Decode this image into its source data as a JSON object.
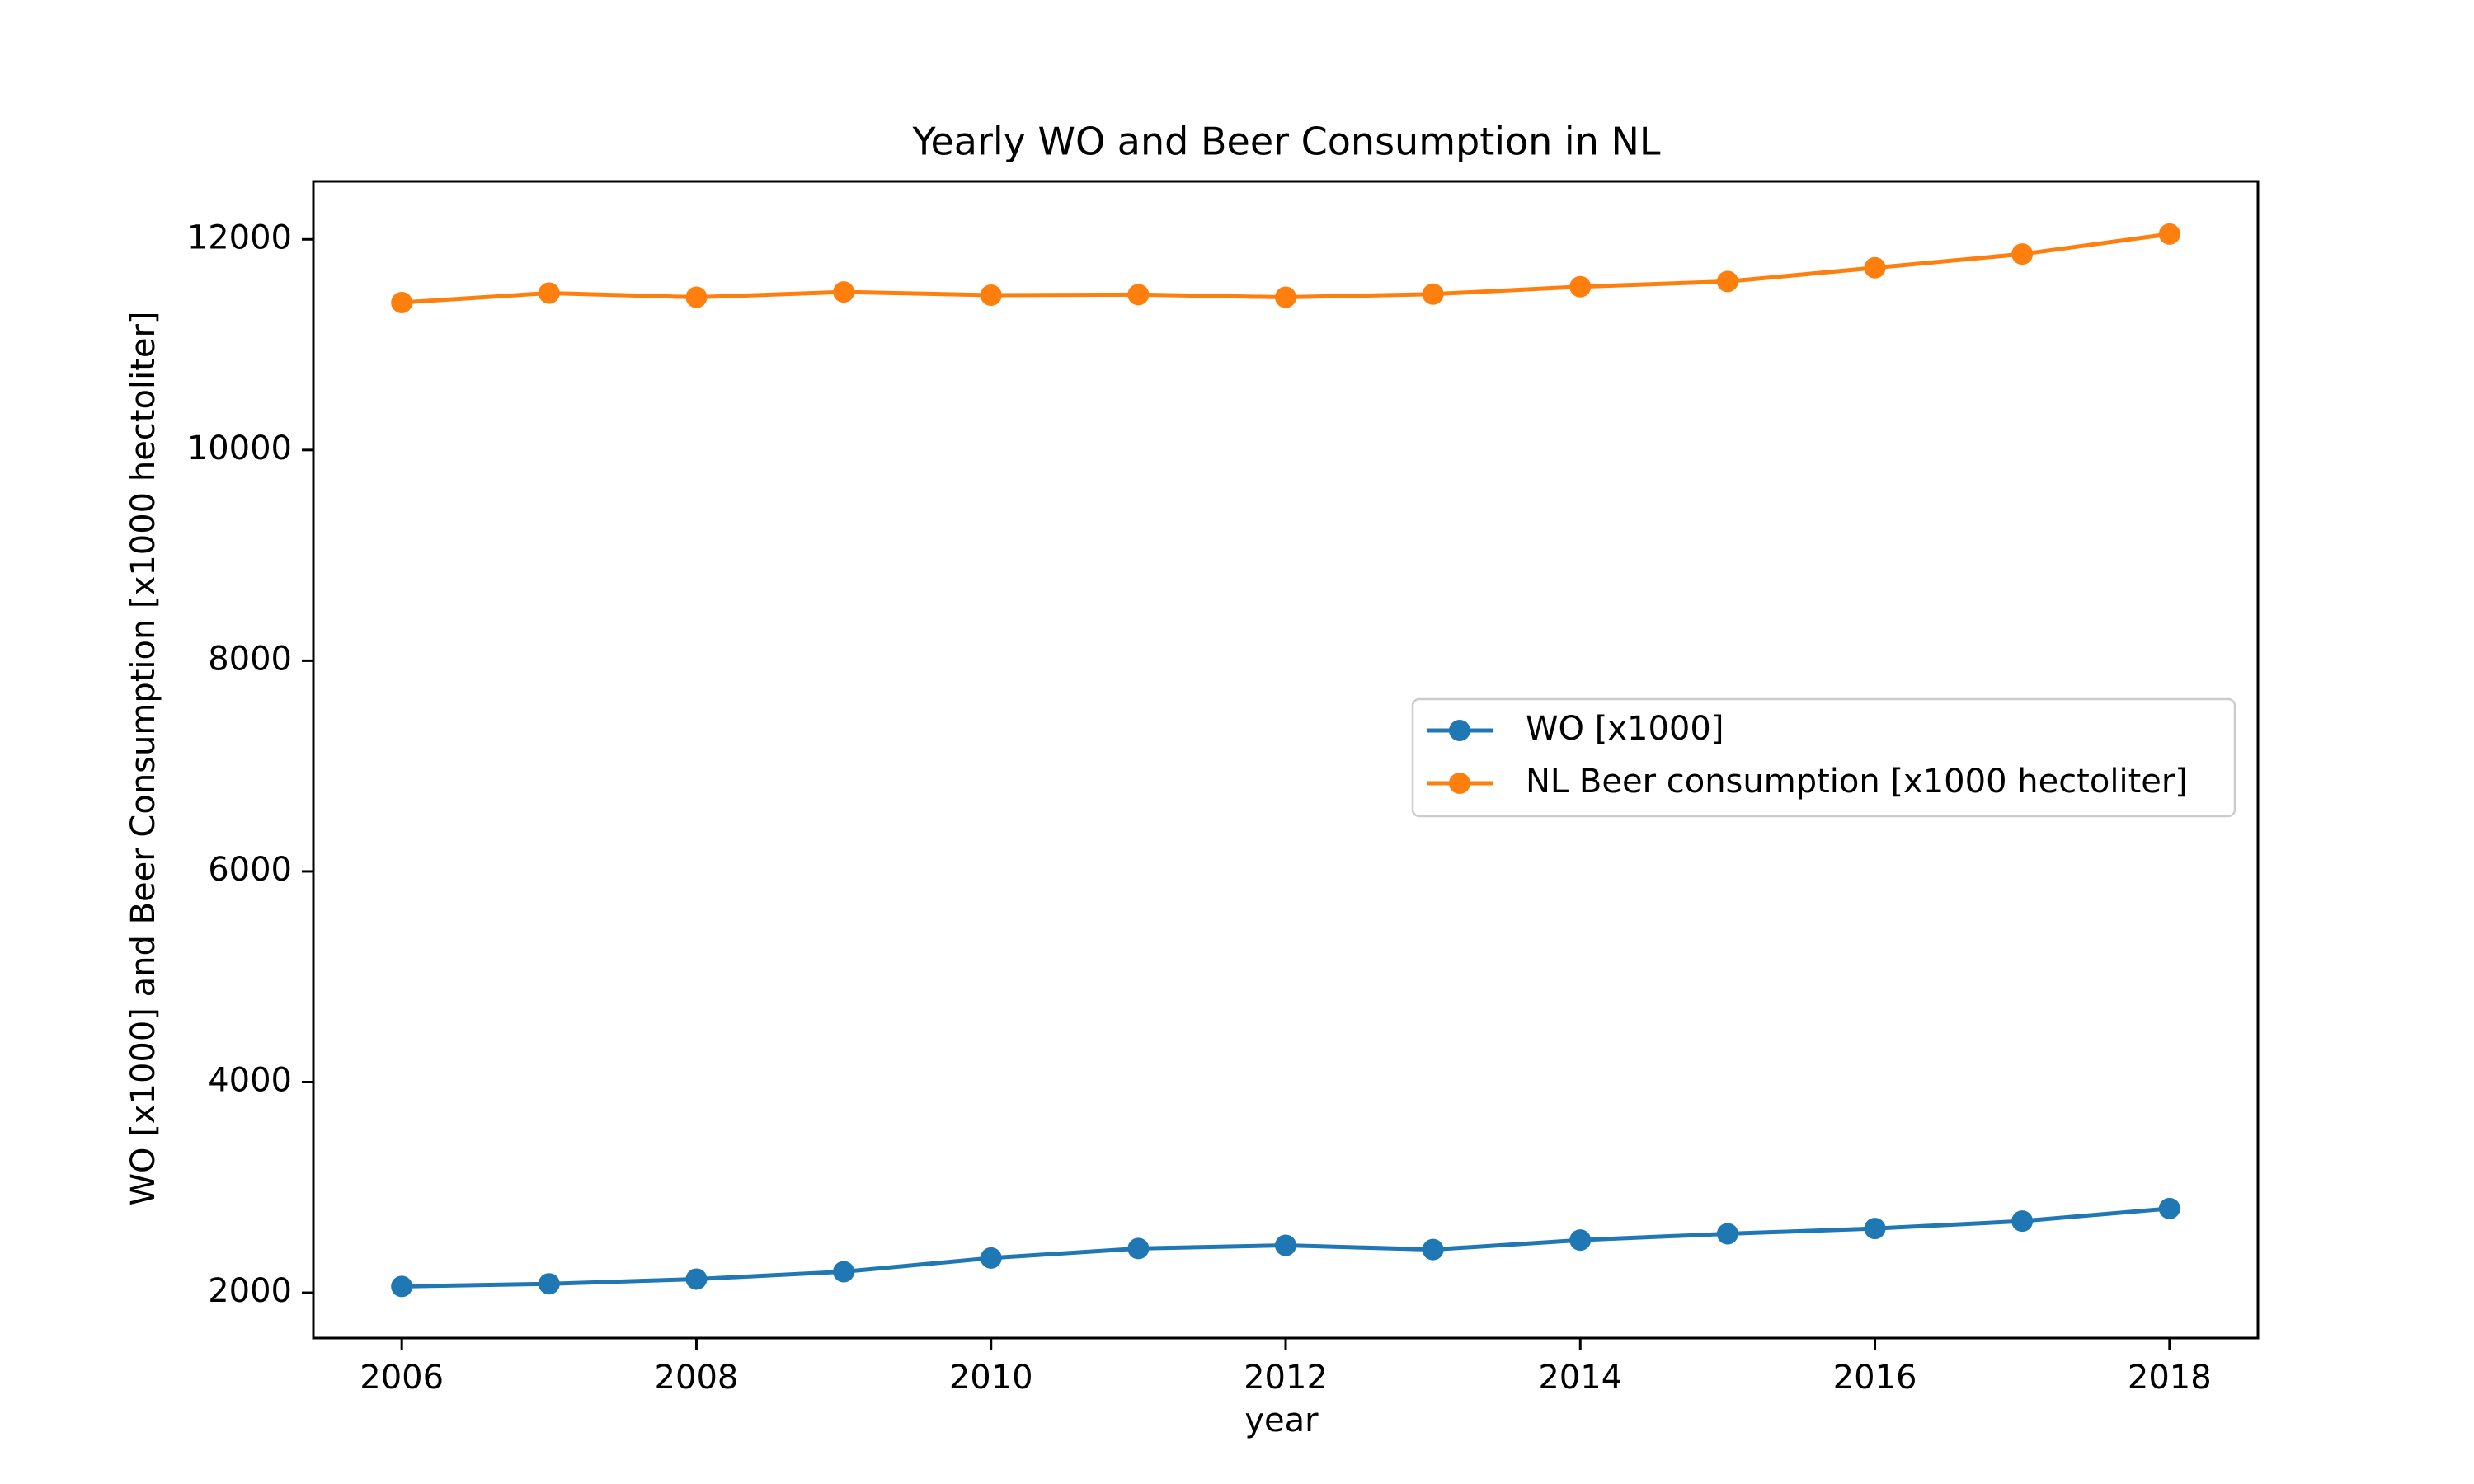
{
  "chart_data": {
    "type": "line",
    "title": "Yearly WO and Beer Consumption in NL",
    "xlabel": "year",
    "ylabel": "WO [x1000] and Beer Consumption [x1000 hectoliter]",
    "xlim": [
      2005.4,
      2018.6
    ],
    "ylim": [
      1570,
      12550
    ],
    "xticks": [
      2006,
      2008,
      2010,
      2012,
      2014,
      2016,
      2018
    ],
    "yticks": [
      2000,
      4000,
      6000,
      8000,
      10000,
      12000
    ],
    "x": [
      2006,
      2007,
      2008,
      2009,
      2010,
      2011,
      2012,
      2013,
      2014,
      2015,
      2016,
      2017,
      2018
    ],
    "series": [
      {
        "name": "WO [x1000]",
        "color": "#1f77b4",
        "values": [
          2060,
          2085,
          2130,
          2200,
          2330,
          2420,
          2450,
          2410,
          2500,
          2560,
          2610,
          2680,
          2800
        ]
      },
      {
        "name": "NL Beer consumption [x1000 hectoliter]",
        "color": "#ff7f0e",
        "values": [
          11400,
          11490,
          11450,
          11500,
          11470,
          11475,
          11450,
          11480,
          11550,
          11600,
          11730,
          11860,
          12050
        ]
      }
    ],
    "grid": false,
    "legend_position": "center-right"
  }
}
